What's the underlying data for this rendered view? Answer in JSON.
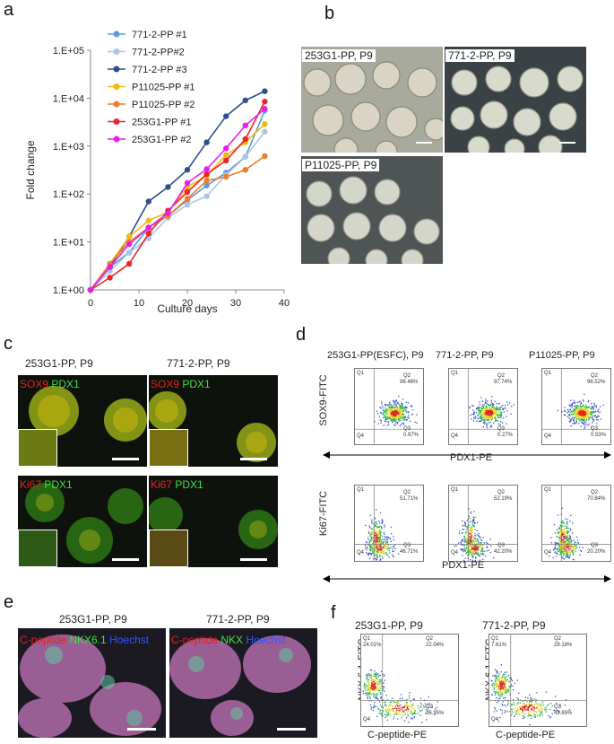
{
  "panels": {
    "a": "a",
    "b": "b",
    "c": "c",
    "d": "d",
    "e": "e",
    "f": "f"
  },
  "chart_data": {
    "type": "line",
    "xlabel": "Culture days",
    "ylabel": "Fold change",
    "xlim": [
      0,
      40
    ],
    "ylim": [
      1,
      100000
    ],
    "yscale": "log",
    "xticks": [
      "0",
      "10",
      "20",
      "30",
      "40"
    ],
    "yticks": [
      "1.E+00",
      "1.E+01",
      "1.E+02",
      "1.E+03",
      "1.E+04",
      "1.E+05"
    ],
    "x": [
      0,
      4,
      8,
      12,
      16,
      20,
      24,
      28,
      32,
      36
    ],
    "legend_position": "top-left",
    "series": [
      {
        "name": "771-2-PP #1",
        "color": "#5b9bd5",
        "values": [
          1,
          3,
          6,
          20,
          35,
          75,
          150,
          280,
          600,
          5500
        ]
      },
      {
        "name": "771-2-PP#2",
        "color": "#a9c4e6",
        "values": [
          1,
          2.5,
          6,
          12,
          32,
          60,
          90,
          250,
          600,
          2000
        ]
      },
      {
        "name": "771-2-PP #3",
        "color": "#2e4f8f",
        "values": [
          1,
          3,
          13,
          70,
          140,
          320,
          1200,
          4200,
          9000,
          14000
        ]
      },
      {
        "name": "P11025-PP #1",
        "color": "#f2b90c",
        "values": [
          1,
          3.5,
          13,
          28,
          42,
          140,
          240,
          650,
          1200,
          2900
        ]
      },
      {
        "name": "P11025-PP #2",
        "color": "#ed7d31",
        "values": [
          1,
          3.5,
          10,
          20,
          35,
          80,
          190,
          230,
          320,
          620
        ]
      },
      {
        "name": "253G1-PP   #1",
        "color": "#e8262a",
        "values": [
          1,
          1.8,
          3.5,
          15,
          45,
          110,
          260,
          500,
          1400,
          8500
        ]
      },
      {
        "name": "253G1-PP   #2",
        "color": "#e91ee6",
        "values": [
          1,
          3,
          9,
          20,
          40,
          170,
          330,
          900,
          2700,
          6000
        ]
      }
    ]
  },
  "b": {
    "labels": [
      "253G1-PP, P9",
      "771-2-PP, P9",
      "P11025-PP, P9"
    ]
  },
  "c": {
    "titles": [
      "253G1-PP, P9",
      "771-2-PP, P9"
    ],
    "marker_sox9": "SOX9",
    "marker_ki67": "Ki67",
    "marker_pdx1": "PDX1"
  },
  "d": {
    "titles": [
      "253G1-PP(ESFC), P9",
      "771-2-PP, P9",
      "P11025-PP, P9"
    ],
    "ylabel_top": "SOX9-FITC",
    "ylabel_bottom": "Ki67-FITC",
    "xlabel": "PDX1-PE",
    "quadrant_names": [
      "Q1",
      "Q2",
      "Q3",
      "Q4"
    ],
    "top": [
      {
        "q2": "98.46%",
        "q3": "0.97%"
      },
      {
        "q2": "97.74%",
        "q3": "0.27%"
      },
      {
        "q2": "96.52%",
        "q3": "0.53%"
      }
    ],
    "bottom": [
      {
        "q2": "51.71%",
        "q3": "46.71%"
      },
      {
        "q2": "52.19%",
        "q3": "42.20%"
      },
      {
        "q2": "70.84%",
        "q3": "20.20%"
      }
    ]
  },
  "e": {
    "titles": [
      "253G1-PP, P9",
      "771-2-PP, P9"
    ],
    "marker_cpep": "C-peptide",
    "marker_nkx": "NKX6.1",
    "marker_nkx_short": "NKX",
    "marker_hoechst": "Hoechst"
  },
  "f": {
    "titles": [
      "253G1-PP, P9",
      "771-2-PP, P9"
    ],
    "ylabel": "NKX 6.1-FITC",
    "xlabel": "C-peptide-PE",
    "plots": [
      {
        "q1": "24.01%",
        "q2": "22.04%",
        "q3": "36.95%"
      },
      {
        "q1": "7.61%",
        "q2": "28.18%",
        "q3": "42.85%"
      }
    ]
  }
}
